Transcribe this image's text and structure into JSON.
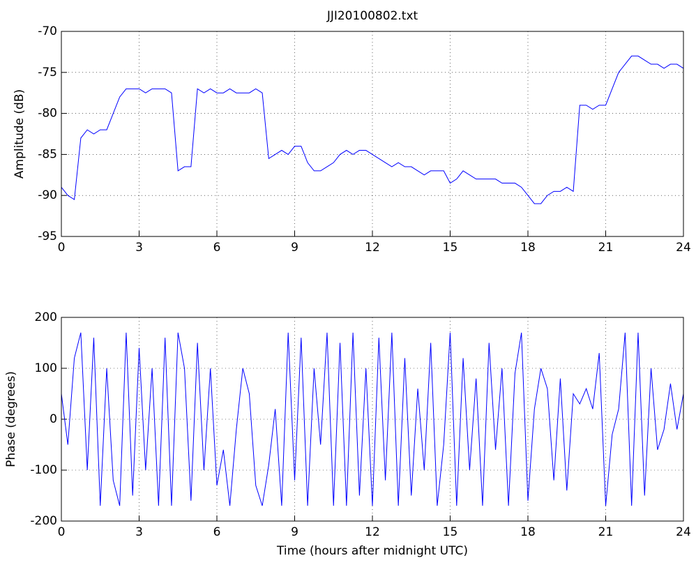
{
  "chart_data": [
    {
      "type": "line",
      "title": "JJI20100802.txt",
      "y_label": "Amplitude (dB)",
      "xlim": [
        0,
        24
      ],
      "xticks": [
        0,
        3,
        6,
        9,
        12,
        15,
        18,
        21,
        24
      ],
      "ylim": [
        -95,
        -70
      ],
      "yticks": [
        -95,
        -90,
        -85,
        -80,
        -75,
        -70
      ],
      "grid": true,
      "x": [
        0,
        0.25,
        0.5,
        0.75,
        1,
        1.25,
        1.5,
        1.75,
        2,
        2.25,
        2.5,
        2.75,
        3,
        3.25,
        3.5,
        3.75,
        4,
        4.25,
        4.5,
        4.75,
        5,
        5.25,
        5.5,
        5.75,
        6,
        6.25,
        6.5,
        6.75,
        7,
        7.25,
        7.5,
        7.75,
        8,
        8.25,
        8.5,
        8.75,
        9,
        9.25,
        9.5,
        9.75,
        10,
        10.25,
        10.5,
        10.75,
        11,
        11.25,
        11.5,
        11.75,
        12,
        12.25,
        12.5,
        12.75,
        13,
        13.25,
        13.5,
        13.75,
        14,
        14.25,
        14.5,
        14.75,
        15,
        15.25,
        15.5,
        15.75,
        16,
        16.25,
        16.5,
        16.75,
        17,
        17.25,
        17.5,
        17.75,
        18,
        18.25,
        18.5,
        18.75,
        19,
        19.25,
        19.5,
        19.75,
        20,
        20.25,
        20.5,
        20.75,
        21,
        21.25,
        21.5,
        21.75,
        22,
        22.25,
        22.5,
        22.75,
        23,
        23.25,
        23.5,
        23.75,
        24
      ],
      "series": [
        {
          "color": "#0000ff",
          "values": [
            -89,
            -90,
            -90.5,
            -83,
            -82,
            -82.5,
            -82,
            -82,
            -80,
            -78,
            -77,
            -77,
            -77,
            -77.5,
            -77,
            -77,
            -77,
            -77.5,
            -87,
            -86.5,
            -86.5,
            -77,
            -77.5,
            -77,
            -77.5,
            -77.5,
            -77,
            -77.5,
            -77.5,
            -77.5,
            -77,
            -77.5,
            -85.5,
            -85,
            -84.5,
            -85,
            -84,
            -84,
            -86,
            -87,
            -87,
            -86.5,
            -86,
            -85,
            -84.5,
            -85,
            -84.5,
            -84.5,
            -85,
            -85.5,
            -86,
            -86.5,
            -86,
            -86.5,
            -86.5,
            -87,
            -87.5,
            -87,
            -87,
            -87,
            -88.5,
            -88,
            -87,
            -87.5,
            -88,
            -88,
            -88,
            -88,
            -88.5,
            -88.5,
            -88.5,
            -89,
            -90,
            -91,
            -91,
            -90,
            -89.5,
            -89.5,
            -89,
            -89.5,
            -79,
            -79,
            -79.5,
            -79,
            -79,
            -77,
            -75,
            -74,
            -73,
            -73,
            -73.5,
            -74,
            -74,
            -74.5,
            -74,
            -74,
            -74.5
          ]
        }
      ]
    },
    {
      "type": "line",
      "y_label": "Phase (degrees)",
      "x_label": "Time (hours after midnight UTC)",
      "xlim": [
        0,
        24
      ],
      "xticks": [
        0,
        3,
        6,
        9,
        12,
        15,
        18,
        21,
        24
      ],
      "ylim": [
        -200,
        200
      ],
      "yticks": [
        -200,
        -100,
        0,
        100,
        200
      ],
      "grid": true,
      "x": [
        0,
        0.25,
        0.5,
        0.75,
        1,
        1.25,
        1.5,
        1.75,
        2,
        2.25,
        2.5,
        2.75,
        3,
        3.25,
        3.5,
        3.75,
        4,
        4.25,
        4.5,
        4.75,
        5,
        5.25,
        5.5,
        5.75,
        6,
        6.25,
        6.5,
        6.75,
        7,
        7.25,
        7.5,
        7.75,
        8,
        8.25,
        8.5,
        8.75,
        9,
        9.25,
        9.5,
        9.75,
        10,
        10.25,
        10.5,
        10.75,
        11,
        11.25,
        11.5,
        11.75,
        12,
        12.25,
        12.5,
        12.75,
        13,
        13.25,
        13.5,
        13.75,
        14,
        14.25,
        14.5,
        14.75,
        15,
        15.25,
        15.5,
        15.75,
        16,
        16.25,
        16.5,
        16.75,
        17,
        17.25,
        17.5,
        17.75,
        18,
        18.25,
        18.5,
        18.75,
        19,
        19.25,
        19.5,
        19.75,
        20,
        20.25,
        20.5,
        20.75,
        21,
        21.25,
        21.5,
        21.75,
        22,
        22.25,
        22.5,
        22.75,
        23,
        23.25,
        23.5,
        23.75,
        24
      ],
      "series": [
        {
          "color": "#0000ff",
          "values": [
            50,
            -50,
            120,
            170,
            -100,
            160,
            -170,
            100,
            -120,
            -170,
            170,
            -150,
            140,
            -100,
            100,
            -170,
            160,
            -170,
            170,
            100,
            -160,
            150,
            -100,
            100,
            -130,
            -60,
            -170,
            -20,
            100,
            50,
            -130,
            -170,
            -90,
            20,
            -170,
            170,
            -120,
            160,
            -170,
            100,
            -50,
            170,
            -170,
            150,
            -170,
            170,
            -150,
            100,
            -170,
            160,
            -120,
            170,
            -170,
            120,
            -150,
            60,
            -100,
            150,
            -170,
            -50,
            170,
            -170,
            120,
            -100,
            80,
            -170,
            150,
            -60,
            100,
            -170,
            90,
            170,
            -160,
            20,
            100,
            60,
            -120,
            80,
            -140,
            50,
            30,
            60,
            20,
            130,
            -170,
            -30,
            20,
            170,
            -170,
            170,
            -150,
            100,
            -60,
            -20,
            70,
            -20,
            50
          ]
        }
      ]
    }
  ]
}
